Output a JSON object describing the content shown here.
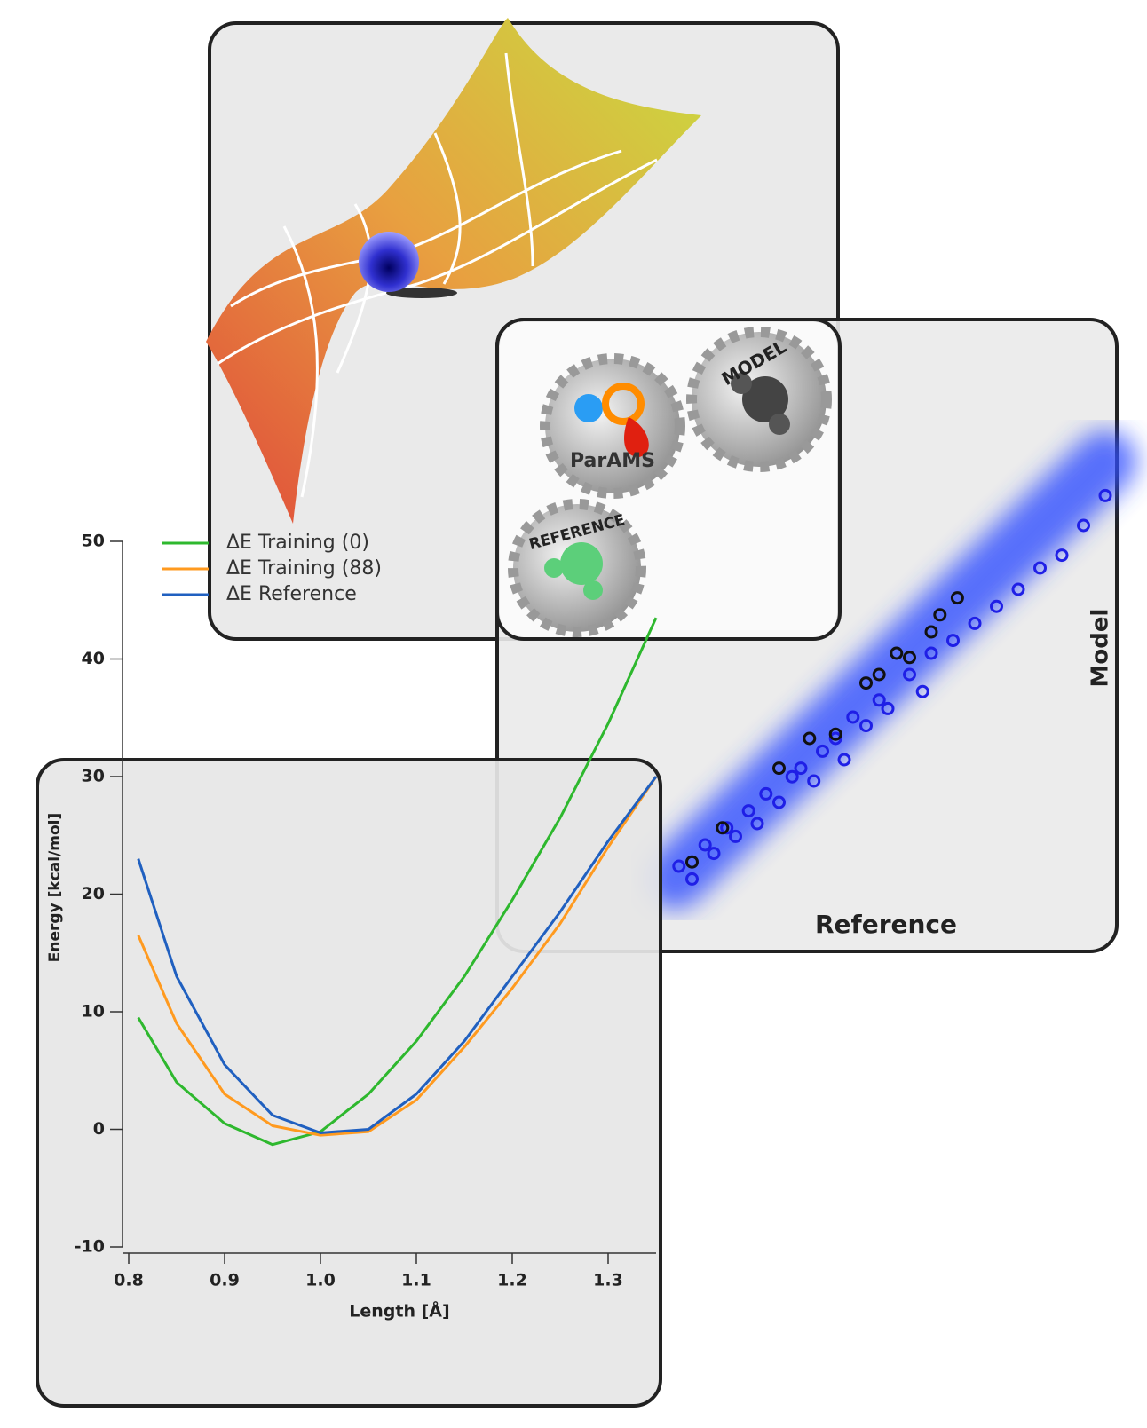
{
  "illustration_labels": {
    "gear_center": "ParAMS",
    "gear_right": "MODEL",
    "gear_bottom": "REFERENCE"
  },
  "chart_data": [
    {
      "type": "scatter",
      "xlabel": "Reference",
      "ylabel": "Model",
      "xlim": [
        0,
        100
      ],
      "ylim": [
        0,
        100
      ],
      "series": [
        {
          "color": "#1f1fe6",
          "x": [
            2,
            5,
            8,
            10,
            13,
            15,
            18,
            20,
            22,
            25,
            28,
            30,
            33,
            35,
            38,
            40,
            42,
            45,
            48,
            50,
            55,
            58,
            60,
            65,
            70,
            75,
            80,
            85,
            90,
            95,
            100
          ],
          "values": [
            5,
            2,
            10,
            8,
            14,
            12,
            18,
            15,
            22,
            20,
            26,
            28,
            25,
            32,
            35,
            30,
            40,
            38,
            44,
            42,
            50,
            46,
            55,
            58,
            62,
            66,
            70,
            75,
            78,
            85,
            92
          ]
        },
        {
          "color": "#111111",
          "x": [
            5,
            12,
            25,
            32,
            38,
            45,
            48,
            52,
            55,
            60,
            62,
            66
          ],
          "values": [
            6,
            14,
            28,
            35,
            36,
            48,
            50,
            55,
            54,
            60,
            64,
            68
          ]
        }
      ]
    },
    {
      "type": "line",
      "xlabel": "Length [Å]",
      "ylabel": "Energy [kcal/mol]",
      "x": [
        0.81,
        0.85,
        0.9,
        0.95,
        1.0,
        1.05,
        1.1,
        1.15,
        1.2,
        1.25,
        1.3,
        1.35
      ],
      "xlim": [
        0.8,
        1.35
      ],
      "ylim": [
        -10,
        50
      ],
      "xticks": [
        0.8,
        0.9,
        {
          "value": 1,
          "label": "1.0"
        },
        1.1,
        1.2,
        1.3
      ],
      "yticks": [
        -10,
        0,
        10,
        20,
        30,
        40,
        50
      ],
      "series": [
        {
          "name": "ΔE Training (0)",
          "color": "#2eb82e",
          "values": [
            9.5,
            4,
            0.5,
            -1.3,
            -0.2,
            3,
            7.5,
            13,
            19.5,
            26.5,
            34.5,
            43.5
          ]
        },
        {
          "name": "ΔE Training (88)",
          "color": "#ff9a1f",
          "values": [
            16.5,
            9,
            3,
            0.3,
            -0.5,
            -0.2,
            2.5,
            7,
            12,
            17.5,
            24,
            30
          ]
        },
        {
          "name": "ΔE Reference",
          "color": "#2060c0",
          "values": [
            23,
            13,
            5.5,
            1.2,
            -0.3,
            0,
            3,
            7.5,
            13,
            18.5,
            24.5,
            30
          ]
        }
      ]
    }
  ]
}
